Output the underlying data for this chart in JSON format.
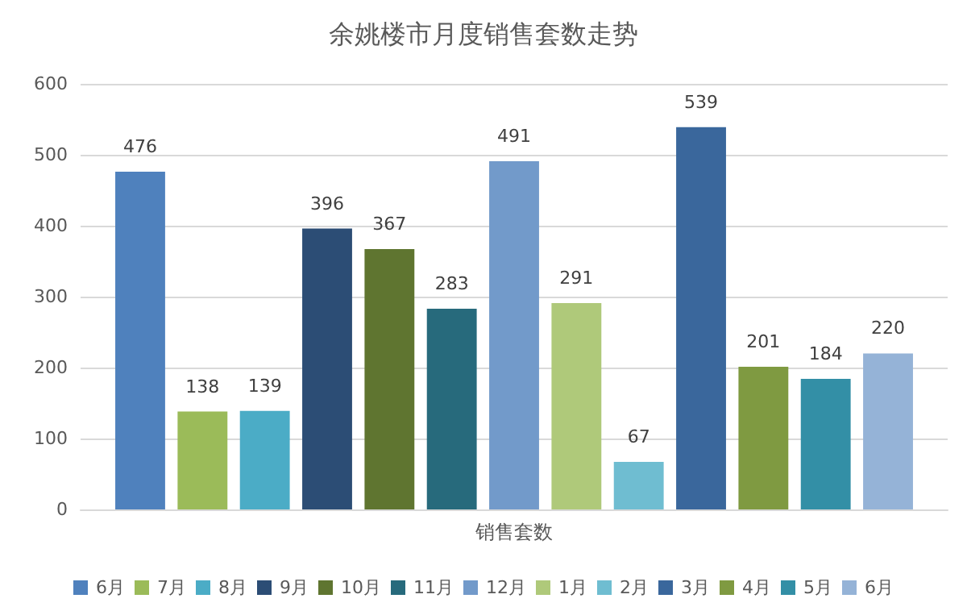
{
  "chart_data": {
    "type": "bar",
    "title": "余姚楼市月度销售套数走势",
    "categories": [
      "销售套数"
    ],
    "series": [
      {
        "name": "6月",
        "color": "#4f81bd",
        "values": [
          476
        ]
      },
      {
        "name": "7月",
        "color": "#9bbb59",
        "values": [
          138
        ]
      },
      {
        "name": "8月",
        "color": "#4bacc6",
        "values": [
          139
        ]
      },
      {
        "name": "9月",
        "color": "#2c4d75",
        "values": [
          396
        ]
      },
      {
        "name": "10月",
        "color": "#5f7530",
        "values": [
          367
        ]
      },
      {
        "name": "11月",
        "color": "#276a7c",
        "values": [
          283
        ]
      },
      {
        "name": "12月",
        "color": "#729aca",
        "values": [
          491
        ]
      },
      {
        "name": "1月",
        "color": "#afc97a",
        "values": [
          291
        ]
      },
      {
        "name": "2月",
        "color": "#6fbdd1",
        "values": [
          67
        ]
      },
      {
        "name": "3月",
        "color": "#3a679c",
        "values": [
          539
        ]
      },
      {
        "name": "4月",
        "color": "#7f9a41",
        "values": [
          201
        ]
      },
      {
        "name": "5月",
        "color": "#338fa6",
        "values": [
          184
        ]
      },
      {
        "name": "6月",
        "color": "#95b3d7",
        "values": [
          220
        ]
      }
    ],
    "ylim": [
      0,
      600
    ],
    "yticks": [
      0,
      100,
      200,
      300,
      400,
      500,
      600
    ],
    "grid": "y",
    "legend": "bottom",
    "data_labels": true
  }
}
